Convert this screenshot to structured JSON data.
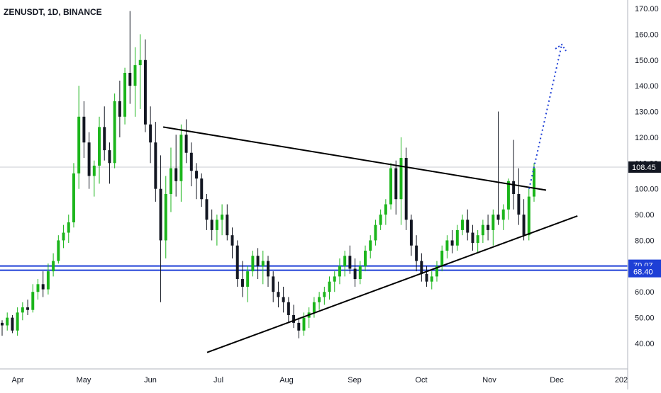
{
  "chart_data": {
    "type": "candlestick",
    "title": "ZENUSDT, 1D, BINANCE",
    "y_ticks": [
      "170.00",
      "160.00",
      "150.00",
      "140.00",
      "130.00",
      "120.00",
      "110.00",
      "100.00",
      "90.00",
      "80.00",
      "70.00",
      "60.00",
      "50.00",
      "40.00"
    ],
    "y_tick_values": [
      170,
      160,
      150,
      140,
      130,
      120,
      110,
      100,
      90,
      80,
      70,
      60,
      50,
      40
    ],
    "x_ticks": [
      "Apr",
      "May",
      "Jun",
      "Jul",
      "Aug",
      "Sep",
      "Oct",
      "Nov",
      "Dec",
      "202"
    ],
    "ylim": [
      31,
      173
    ],
    "last_price": "108.45",
    "last_price_value": 108.45,
    "horizontal_levels": [
      {
        "label": "70.07",
        "value": 70.07
      },
      {
        "label": "68.40",
        "value": 68.4
      }
    ],
    "trendlines": [
      {
        "name": "descending-resistance",
        "points": [
          [
            0.26,
            124
          ],
          [
            0.87,
            99.5
          ]
        ]
      },
      {
        "name": "ascending-support",
        "points": [
          [
            0.33,
            36.5
          ],
          [
            0.92,
            89.5
          ]
        ]
      }
    ],
    "projection": {
      "from": [
        0.843,
        100
      ],
      "to": [
        0.895,
        156
      ]
    },
    "candles": [
      [
        48,
        49,
        43,
        47
      ],
      [
        47,
        52,
        45,
        50
      ],
      [
        50,
        51,
        44,
        45
      ],
      [
        45,
        54,
        43,
        52
      ],
      [
        52,
        56,
        49,
        54
      ],
      [
        54,
        57,
        51,
        53
      ],
      [
        53,
        63,
        52,
        60
      ],
      [
        60,
        65,
        57,
        63
      ],
      [
        63,
        68,
        58,
        61
      ],
      [
        61,
        71,
        59,
        68
      ],
      [
        68,
        75,
        66,
        72
      ],
      [
        72,
        82,
        71,
        80
      ],
      [
        80,
        86,
        77,
        83
      ],
      [
        83,
        90,
        79,
        87
      ],
      [
        87,
        110,
        85,
        106
      ],
      [
        106,
        140,
        100,
        128
      ],
      [
        128,
        134,
        112,
        118
      ],
      [
        118,
        122,
        100,
        105
      ],
      [
        105,
        111,
        97,
        109
      ],
      [
        109,
        128,
        102,
        124
      ],
      [
        124,
        132,
        111,
        115
      ],
      [
        115,
        118,
        102,
        110
      ],
      [
        110,
        137,
        108,
        134
      ],
      [
        134,
        142,
        120,
        128
      ],
      [
        128,
        147,
        125,
        145
      ],
      [
        145,
        169,
        133,
        140
      ],
      [
        140,
        155,
        128,
        148
      ],
      [
        148,
        160,
        131,
        150
      ],
      [
        150,
        158,
        122,
        125
      ],
      [
        125,
        132,
        110,
        118
      ],
      [
        118,
        126,
        95,
        100
      ],
      [
        100,
        113,
        56,
        80
      ],
      [
        80,
        105,
        73,
        98
      ],
      [
        98,
        116,
        91,
        108
      ],
      [
        108,
        121,
        97,
        103
      ],
      [
        103,
        125,
        95,
        121
      ],
      [
        121,
        127,
        110,
        114
      ],
      [
        114,
        118,
        101,
        107
      ],
      [
        107,
        110,
        96,
        104
      ],
      [
        104,
        106,
        93,
        96
      ],
      [
        96,
        98,
        84,
        88
      ],
      [
        88,
        92,
        80,
        84
      ],
      [
        84,
        90,
        78,
        88
      ],
      [
        88,
        94,
        82,
        90
      ],
      [
        90,
        94,
        80,
        82
      ],
      [
        82,
        85,
        73,
        78
      ],
      [
        78,
        80,
        62,
        65
      ],
      [
        65,
        72,
        58,
        62
      ],
      [
        62,
        70,
        56,
        68
      ],
      [
        68,
        76,
        66,
        74
      ],
      [
        74,
        77,
        65,
        70
      ],
      [
        70,
        76,
        63,
        72
      ],
      [
        72,
        74,
        62,
        66
      ],
      [
        66,
        68,
        56,
        60
      ],
      [
        60,
        64,
        54,
        58
      ],
      [
        58,
        62,
        52,
        56
      ],
      [
        56,
        58,
        48,
        51
      ],
      [
        51,
        55,
        46,
        48
      ],
      [
        48,
        50,
        42,
        45
      ],
      [
        45,
        52,
        43,
        50
      ],
      [
        50,
        54,
        46,
        52
      ],
      [
        52,
        58,
        50,
        56
      ],
      [
        56,
        60,
        53,
        58
      ],
      [
        58,
        62,
        55,
        60
      ],
      [
        60,
        66,
        57,
        64
      ],
      [
        64,
        68,
        60,
        66
      ],
      [
        66,
        73,
        63,
        70
      ],
      [
        70,
        76,
        66,
        74
      ],
      [
        74,
        78,
        67,
        69
      ],
      [
        69,
        73,
        62,
        65
      ],
      [
        65,
        72,
        63,
        70
      ],
      [
        70,
        78,
        68,
        76
      ],
      [
        76,
        82,
        73,
        80
      ],
      [
        80,
        88,
        78,
        86
      ],
      [
        86,
        92,
        84,
        90
      ],
      [
        90,
        96,
        86,
        94
      ],
      [
        94,
        110,
        92,
        108
      ],
      [
        108,
        111,
        90,
        96
      ],
      [
        96,
        120,
        86,
        112
      ],
      [
        112,
        116,
        84,
        88
      ],
      [
        88,
        90,
        74,
        78
      ],
      [
        78,
        82,
        68,
        72
      ],
      [
        72,
        75,
        64,
        67
      ],
      [
        67,
        70,
        62,
        64
      ],
      [
        64,
        68,
        61,
        66
      ],
      [
        66,
        72,
        64,
        70
      ],
      [
        70,
        78,
        68,
        76
      ],
      [
        76,
        82,
        73,
        80
      ],
      [
        80,
        84,
        75,
        78
      ],
      [
        78,
        86,
        76,
        84
      ],
      [
        84,
        90,
        82,
        88
      ],
      [
        88,
        92,
        80,
        83
      ],
      [
        83,
        86,
        76,
        79
      ],
      [
        79,
        84,
        75,
        82
      ],
      [
        82,
        88,
        79,
        86
      ],
      [
        86,
        90,
        80,
        84
      ],
      [
        84,
        92,
        78,
        90
      ],
      [
        90,
        130,
        86,
        88
      ],
      [
        88,
        94,
        84,
        92
      ],
      [
        92,
        104,
        88,
        103
      ],
      [
        103,
        119,
        92,
        98
      ],
      [
        98,
        108,
        86,
        90
      ],
      [
        90,
        96,
        80,
        82
      ],
      [
        82,
        100,
        80,
        97
      ],
      [
        97,
        110,
        95,
        108
      ]
    ]
  }
}
